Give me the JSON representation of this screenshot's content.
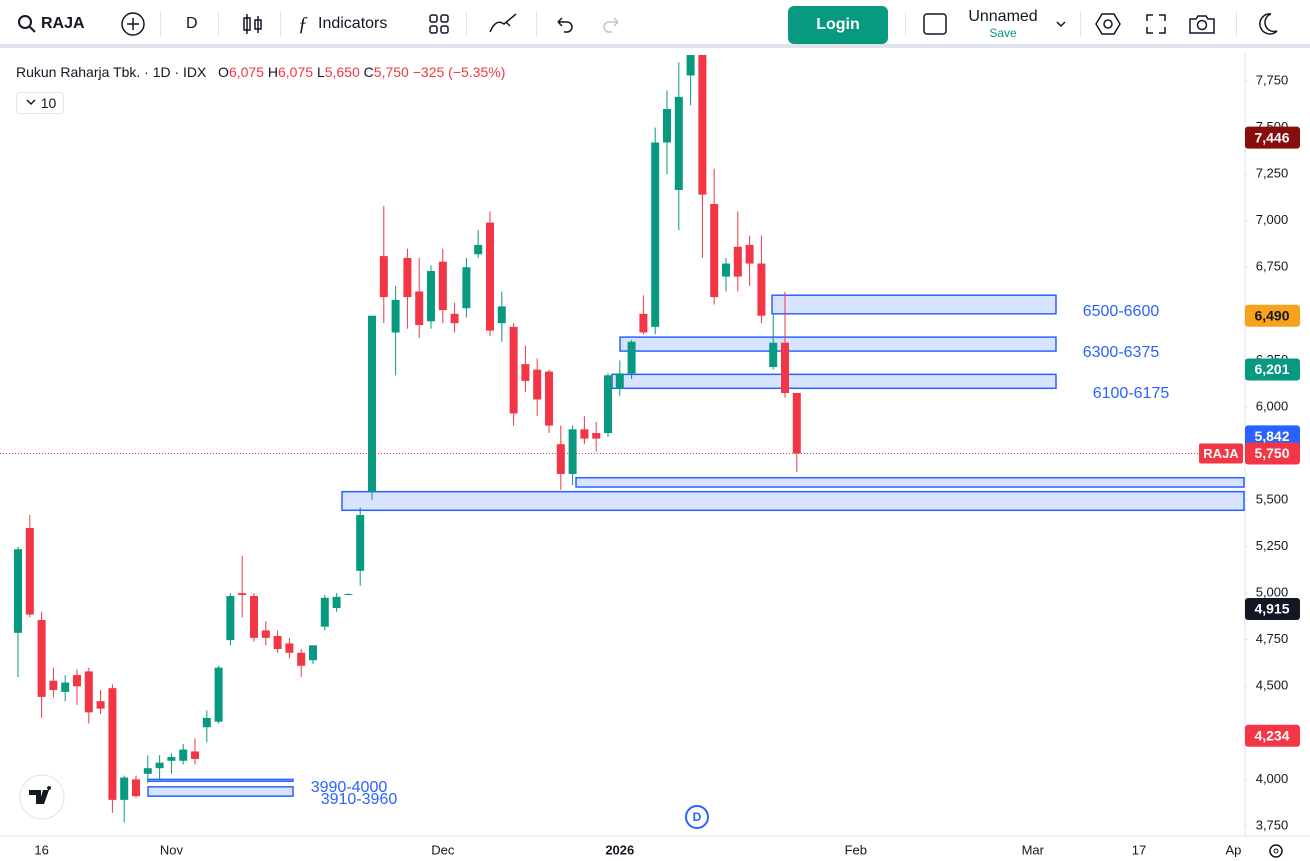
{
  "toolbar": {
    "symbol": "RAJA",
    "interval": "D",
    "indicators": "Indicators",
    "login": "Login",
    "layout_name": "Unnamed",
    "save": "Save"
  },
  "chart_data": {
    "type": "candlestick",
    "legend": {
      "name": "Rukun Raharja Tbk. · 1D · IDX",
      "o_label": "O",
      "o": "6,075",
      "h_label": "H",
      "h": "6,075",
      "l_label": "L",
      "l": "5,650",
      "c_label": "C",
      "c": "5,750",
      "change": "−325 (−5.35%)",
      "indicator_count": "10"
    },
    "categories": [
      null,
      null,
      "16",
      null,
      null,
      null,
      null,
      null,
      null,
      null,
      null,
      null,
      null,
      "Nov",
      null,
      null,
      null,
      null,
      null,
      null,
      null,
      null,
      null,
      null,
      null,
      null,
      null,
      null,
      null,
      null,
      null,
      null,
      null,
      null,
      null,
      null,
      "Dec",
      null,
      null,
      null,
      null,
      null,
      null,
      null,
      null,
      null,
      null,
      null,
      null,
      null,
      null,
      "2026",
      null,
      null,
      null,
      null,
      null,
      null,
      null,
      null,
      null,
      null,
      null,
      null,
      null,
      null,
      null,
      null,
      null,
      null,
      null,
      "Feb",
      null,
      null,
      null,
      null,
      null,
      null,
      null,
      null,
      null,
      null,
      null,
      null,
      null,
      null,
      "Mar",
      null,
      null,
      null,
      null,
      null,
      null,
      null,
      null,
      "17",
      null,
      null,
      null,
      null,
      null,
      null,
      null,
      "Ap"
    ],
    "series": [
      {
        "name": "RAJA",
        "up_color": "#089981",
        "down_color": "#f23645",
        "open": [
          4787,
          5350,
          4856,
          4530,
          4470,
          4560,
          4580,
          4420,
          4490,
          3890,
          4000,
          4030,
          4060,
          4100,
          4100,
          4150,
          4280,
          4310,
          4748,
          5000,
          4985,
          4800,
          4770,
          4730,
          4680,
          4640,
          4820,
          4920,
          4995,
          5120,
          5545,
          6810,
          6400,
          6800,
          6620,
          6460,
          6780,
          6500,
          6530,
          6820,
          6990,
          6450,
          6430,
          6230,
          6200,
          6190,
          5800,
          5640,
          5880,
          5860,
          5860,
          6100,
          6180,
          6500,
          6430,
          7420,
          7165,
          7780,
          7890,
          7090,
          6700,
          6860,
          6870,
          6770,
          6215,
          6345,
          6075,
          null,
          null,
          null,
          null,
          null,
          null,
          null,
          null,
          null,
          null,
          null,
          null,
          null,
          null,
          null,
          null,
          null,
          null,
          null,
          null,
          null,
          null,
          null,
          null,
          null,
          null,
          null,
          null,
          null,
          null,
          null,
          null,
          null,
          null,
          null,
          null
        ],
        "high": [
          5250,
          5420,
          4900,
          4600,
          4560,
          4590,
          4600,
          4480,
          4510,
          4020,
          4020,
          4130,
          4130,
          4140,
          4190,
          4220,
          4370,
          4610,
          5000,
          5200,
          5000,
          4850,
          4800,
          4760,
          4700,
          4720,
          4990,
          5000,
          5000,
          5460,
          6490,
          7080,
          6650,
          6850,
          6800,
          6760,
          6850,
          6560,
          6800,
          6950,
          7050,
          6620,
          6450,
          6330,
          6260,
          6200,
          5900,
          5900,
          5950,
          5920,
          6180,
          6250,
          6360,
          6600,
          7500,
          7700,
          7850,
          7890,
          7890,
          7280,
          6800,
          7050,
          6920,
          6920,
          6500,
          6617,
          6075,
          null,
          null,
          null,
          null,
          null,
          null,
          null,
          null,
          null,
          null,
          null,
          null,
          null,
          null,
          null,
          null,
          null,
          null,
          null,
          null,
          null,
          null,
          null,
          null,
          null,
          null,
          null,
          null,
          null,
          null,
          null,
          null,
          null,
          null,
          null,
          null
        ],
        "low": [
          4550,
          4870,
          4330,
          4440,
          4420,
          4400,
          4300,
          4350,
          3820,
          3770,
          3900,
          3980,
          4000,
          4030,
          4080,
          4080,
          4200,
          4300,
          4720,
          4870,
          4740,
          4720,
          4680,
          4650,
          4550,
          4620,
          4800,
          4900,
          4990,
          5040,
          5500,
          6450,
          6170,
          6420,
          6370,
          6420,
          6450,
          6400,
          6480,
          6800,
          6380,
          6350,
          5900,
          6080,
          5950,
          5860,
          5555,
          5580,
          5800,
          5760,
          5840,
          6060,
          6150,
          6390,
          6390,
          7250,
          6950,
          7620,
          6800,
          6550,
          6620,
          6620,
          6650,
          6450,
          6200,
          6050,
          5650,
          null,
          null,
          null,
          null,
          null,
          null,
          null,
          null,
          null,
          null,
          null,
          null,
          null,
          null,
          null,
          null,
          null,
          null,
          null,
          null,
          null,
          null,
          null,
          null,
          null,
          null,
          null,
          null,
          null,
          null,
          null,
          null,
          null,
          null,
          null,
          null
        ],
        "close": [
          5236,
          4885,
          4443,
          4480,
          4520,
          4500,
          4360,
          4380,
          3890,
          4010,
          3910,
          4060,
          4090,
          4120,
          4160,
          4110,
          4330,
          4600,
          4985,
          4990,
          4760,
          4760,
          4700,
          4680,
          4610,
          4720,
          4975,
          4980,
          4995,
          5420,
          6490,
          6590,
          6575,
          6590,
          6440,
          6730,
          6520,
          6450,
          6750,
          6870,
          6410,
          6540,
          5965,
          6140,
          6040,
          5900,
          5640,
          5880,
          5830,
          5830,
          6170,
          6180,
          6350,
          6400,
          7420,
          7600,
          7665,
          7890,
          7140,
          6590,
          6770,
          6700,
          6770,
          6490,
          6345,
          6075,
          5750,
          null,
          null,
          null,
          null,
          null,
          null,
          null,
          null,
          null,
          null,
          null,
          null,
          null,
          null,
          null,
          null,
          null,
          null,
          null,
          null,
          null,
          null,
          null,
          null,
          null,
          null,
          null,
          null,
          null,
          null,
          null,
          null,
          null,
          null,
          null,
          null
        ]
      }
    ],
    "ylim": [
      3696,
      7906
    ],
    "yticks": [
      {
        "value": 3750,
        "label": "3,750"
      },
      {
        "value": 4000,
        "label": "4,000"
      },
      {
        "value": 4250,
        "label": "4,250"
      },
      {
        "value": 4500,
        "label": "4,500"
      },
      {
        "value": 4750,
        "label": "4,750"
      },
      {
        "value": 5000,
        "label": "5,000"
      },
      {
        "value": 5250,
        "label": "5,250"
      },
      {
        "value": 5500,
        "label": "5,500"
      },
      {
        "value": 5750,
        "label": "5,750"
      },
      {
        "value": 6000,
        "label": "6,000"
      },
      {
        "value": 6250,
        "label": "6,250"
      },
      {
        "value": 6500,
        "label": "6,500"
      },
      {
        "value": 6750,
        "label": "6,750"
      },
      {
        "value": 7000,
        "label": "7,000"
      },
      {
        "value": 7250,
        "label": "7,250"
      },
      {
        "value": 7500,
        "label": "7,500"
      },
      {
        "value": 7750,
        "label": "7,750"
      }
    ],
    "price_labels": [
      {
        "value": 7446,
        "label": "7,446",
        "color": "#880e0e",
        "text_color": "#ffffff"
      },
      {
        "value": 6490,
        "label": "6,490",
        "color": "#f7a21b",
        "text_color": "#131722"
      },
      {
        "value": 6201,
        "label": "6,201",
        "color": "#089981",
        "text_color": "#ffffff"
      },
      {
        "value": 5842,
        "label": "5,842",
        "color": "#2962ff",
        "text_color": "#ffffff"
      },
      {
        "value": 5750,
        "label": "5,750",
        "color": "#f23645",
        "text_color": "#ffffff",
        "last": true
      },
      {
        "value": 4915,
        "label": "4,915",
        "color": "#131722",
        "text_color": "#ffffff"
      },
      {
        "value": 4234,
        "label": "4,234",
        "color": "#f23645",
        "text_color": "#ffffff"
      }
    ],
    "zones": [
      {
        "low": 6500,
        "high": 6600,
        "label": "6500-6600"
      },
      {
        "low": 6300,
        "high": 6375,
        "label": "6300-6375"
      },
      {
        "low": 6100,
        "high": 6175,
        "label": "6100-6175"
      },
      {
        "low": 5445,
        "high": 5545
      },
      {
        "low": 5570,
        "high": 5620
      },
      {
        "low": 3990,
        "high": 4000,
        "label": "3990-4000"
      },
      {
        "low": 3910,
        "high": 3960,
        "label": "3910-3960"
      }
    ],
    "marker": "D"
  }
}
